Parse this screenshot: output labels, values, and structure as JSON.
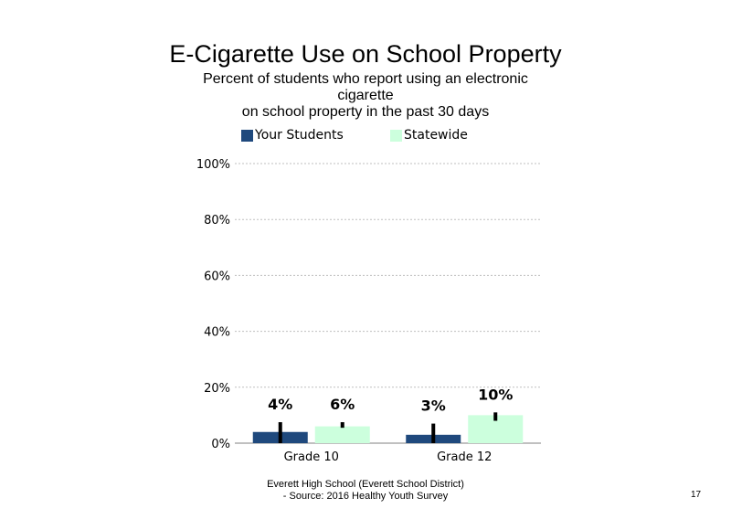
{
  "chart_data": {
    "type": "bar",
    "title": "E-Cigarette Use on School Property",
    "subtitle_lines": [
      "Percent of students  who report using an electronic",
      "cigarette",
      "on school property in the past 30 days"
    ],
    "categories": [
      "Grade 10",
      "Grade 12"
    ],
    "series": [
      {
        "name": "Your Students",
        "values": [
          4,
          3
        ],
        "labels": [
          "4%",
          "3%"
        ],
        "error_low": [
          0,
          0
        ],
        "error_high": [
          7.5,
          7
        ],
        "color": "#1f497d"
      },
      {
        "name": "Statewide",
        "values": [
          6,
          10
        ],
        "labels": [
          "6%",
          "10%"
        ],
        "error_low": [
          5.5,
          8
        ],
        "error_high": [
          7.5,
          11
        ],
        "color": "#ccffdd"
      }
    ],
    "y_ticks": [
      "100%",
      "80%",
      "60%",
      "40%",
      "20%",
      "0%"
    ],
    "ylim": [
      0,
      100
    ],
    "gridlines": [
      20,
      40,
      60,
      80,
      100
    ]
  },
  "footer": {
    "line1": "Everett High School (Everett School District)",
    "line2": "- Source: 2016 Healthy Youth Survey"
  },
  "page_number": "17"
}
